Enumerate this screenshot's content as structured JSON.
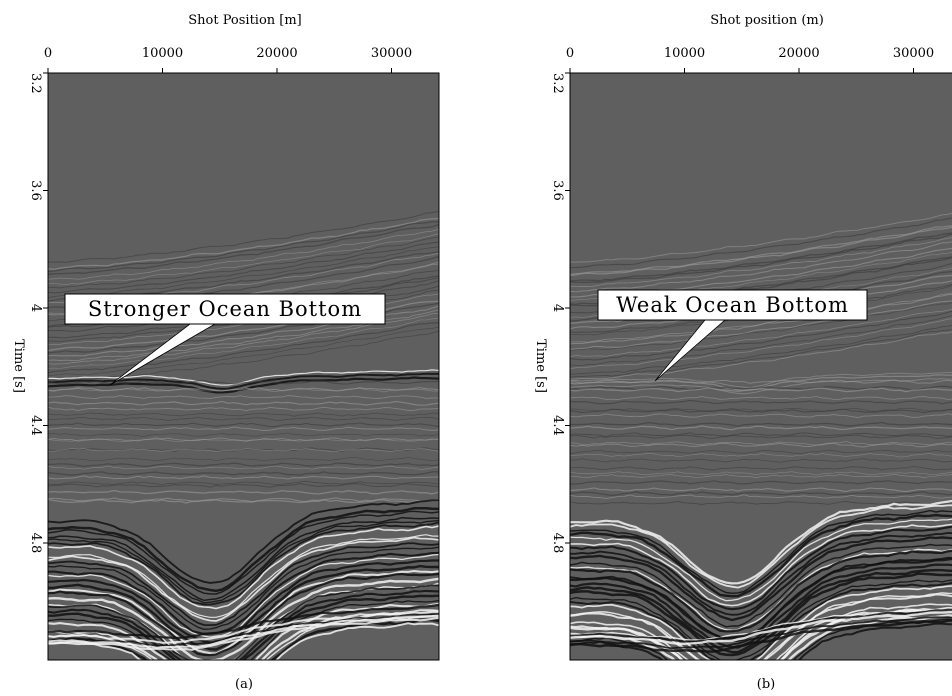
{
  "panels": [
    {
      "x_axis_label": "Shot Position [m]",
      "y_axis_label": "Time [s]",
      "x_ticks": [
        "0",
        "10000",
        "20000",
        "30000"
      ],
      "y_ticks": [
        "3.2",
        "3.6",
        "4",
        "4.4",
        "4.8"
      ],
      "annotation": "Stronger Ocean Bottom",
      "caption": "(a)"
    },
    {
      "x_axis_label": "Shot position (m)",
      "y_axis_label": "Time [s]",
      "x_ticks": [
        "0",
        "10000",
        "20000",
        "30000"
      ],
      "y_ticks": [
        "3.2",
        "3.6",
        "4",
        "4.4",
        "4.8"
      ],
      "annotation": "Weak Ocean Bottom",
      "caption": "(b)"
    }
  ]
}
